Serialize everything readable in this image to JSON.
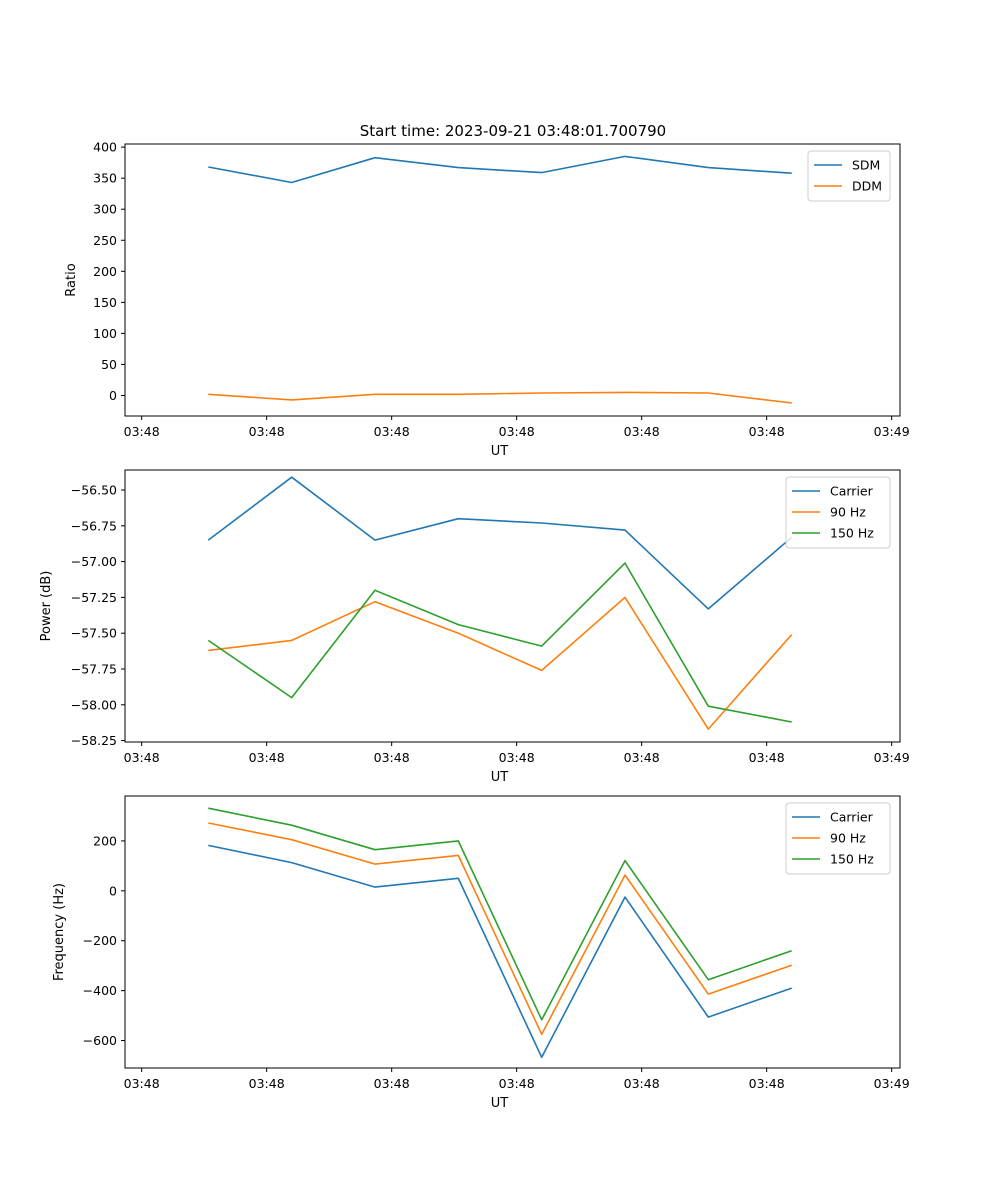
{
  "figure_title": "Start time: 2023-09-21 03:48:01.700790",
  "colors": {
    "blue": "#1f77b4",
    "orange": "#ff7f0e",
    "green": "#2ca02c"
  },
  "chart_data": [
    {
      "type": "line",
      "title": "Start time: 2023-09-21 03:48:01.700790",
      "xlabel": "UT",
      "ylabel": "Ratio",
      "xlim": [
        0,
        9.3
      ],
      "ylim": [
        -33,
        405
      ],
      "yticks": [
        0,
        50,
        100,
        150,
        200,
        250,
        300,
        350,
        400
      ],
      "ytick_labels": [
        "0",
        "50",
        "100",
        "150",
        "200",
        "250",
        "300",
        "350",
        "400"
      ],
      "xticks": [
        0.2,
        1.7,
        3.2,
        4.7,
        6.2,
        7.7,
        9.2
      ],
      "xtick_labels": [
        "03:48",
        "03:48",
        "03:48",
        "03:48",
        "03:48",
        "03:48",
        "03:49"
      ],
      "x": [
        1,
        2,
        3,
        4,
        5,
        6,
        7,
        8
      ],
      "legend_position": "top-right",
      "series": [
        {
          "name": "SDM",
          "color": "#1f77b4",
          "values": [
            368,
            343,
            383,
            367,
            359,
            385,
            367,
            358
          ]
        },
        {
          "name": "DDM",
          "color": "#ff7f0e",
          "values": [
            2,
            -7,
            2,
            2,
            4,
            5,
            4,
            -12
          ]
        }
      ]
    },
    {
      "type": "line",
      "title": "",
      "xlabel": "UT",
      "ylabel": "Power (dB)",
      "xlim": [
        0,
        9.3
      ],
      "ylim": [
        -58.26,
        -56.36
      ],
      "yticks": [
        -58.25,
        -58.0,
        -57.75,
        -57.5,
        -57.25,
        -57.0,
        -56.75,
        -56.5
      ],
      "ytick_labels": [
        "−58.25",
        "−58.00",
        "−57.75",
        "−57.50",
        "−57.25",
        "−57.00",
        "−56.75",
        "−56.50"
      ],
      "xticks": [
        0.2,
        1.7,
        3.2,
        4.7,
        6.2,
        7.7,
        9.2
      ],
      "xtick_labels": [
        "03:48",
        "03:48",
        "03:48",
        "03:48",
        "03:48",
        "03:48",
        "03:49"
      ],
      "x": [
        1,
        2,
        3,
        4,
        5,
        6,
        7,
        8
      ],
      "legend_position": "top-right",
      "series": [
        {
          "name": "Carrier",
          "color": "#1f77b4",
          "values": [
            -56.85,
            -56.41,
            -56.85,
            -56.7,
            -56.73,
            -56.78,
            -57.33,
            -56.83
          ]
        },
        {
          "name": "90 Hz",
          "color": "#ff7f0e",
          "values": [
            -57.62,
            -57.55,
            -57.28,
            -57.5,
            -57.76,
            -57.25,
            -58.17,
            -57.51
          ]
        },
        {
          "name": "150 Hz",
          "color": "#2ca02c",
          "values": [
            -57.55,
            -57.95,
            -57.2,
            -57.44,
            -57.59,
            -57.01,
            -58.01,
            -58.12
          ]
        }
      ]
    },
    {
      "type": "line",
      "title": "",
      "xlabel": "UT",
      "ylabel": "Frequency (Hz)",
      "xlim": [
        0,
        9.3
      ],
      "ylim": [
        -710,
        380
      ],
      "yticks": [
        -600,
        -400,
        -200,
        0,
        200
      ],
      "ytick_labels": [
        "−600",
        "−400",
        "−200",
        "0",
        "200"
      ],
      "xticks": [
        0.2,
        1.7,
        3.2,
        4.7,
        6.2,
        7.7,
        9.2
      ],
      "xtick_labels": [
        "03:48",
        "03:48",
        "03:48",
        "03:48",
        "03:48",
        "03:48",
        "03:49"
      ],
      "x": [
        1,
        2,
        3,
        4,
        5,
        6,
        7,
        8
      ],
      "legend_position": "top-right",
      "series": [
        {
          "name": "Carrier",
          "color": "#1f77b4",
          "values": [
            182,
            113,
            15,
            50,
            -667,
            -25,
            -506,
            -390
          ]
        },
        {
          "name": "90 Hz",
          "color": "#ff7f0e",
          "values": [
            272,
            205,
            107,
            142,
            -575,
            63,
            -414,
            -298
          ]
        },
        {
          "name": "150 Hz",
          "color": "#2ca02c",
          "values": [
            331,
            263,
            165,
            200,
            -517,
            121,
            -356,
            -240
          ]
        }
      ]
    }
  ]
}
